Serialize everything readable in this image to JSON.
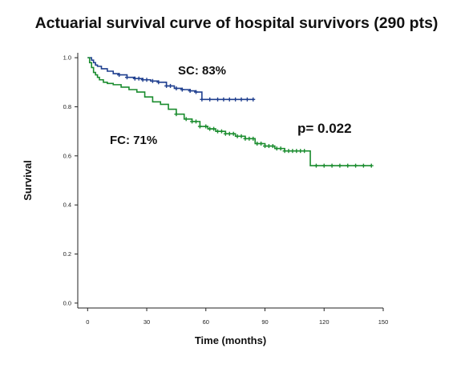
{
  "chart_data": {
    "type": "line",
    "title": "Actuarial survival curve of hospital survivors (290 pts)",
    "xlabel": "Time (months)",
    "ylabel": "Survival",
    "xlim": [
      -5,
      150
    ],
    "ylim": [
      -0.02,
      1.02
    ],
    "xticks": [
      0,
      30,
      60,
      90,
      120,
      150
    ],
    "yticks": [
      0.0,
      0.2,
      0.4,
      0.6,
      0.8,
      1.0
    ],
    "grid": false,
    "annotations": [
      "SC: 83%",
      "FC: 71%",
      "p= 0.022"
    ],
    "series": [
      {
        "color": "#1f3f8f",
        "x": [
          0,
          1,
          2,
          3,
          4,
          5,
          7,
          10,
          13,
          16,
          20,
          24,
          28,
          32,
          36,
          40,
          44,
          48,
          52,
          55,
          58,
          62,
          66,
          70,
          75,
          80,
          84
        ],
        "y": [
          1.0,
          1.0,
          0.99,
          0.98,
          0.97,
          0.965,
          0.955,
          0.945,
          0.935,
          0.93,
          0.92,
          0.915,
          0.91,
          0.905,
          0.9,
          0.885,
          0.875,
          0.87,
          0.865,
          0.86,
          0.83,
          0.83,
          0.83,
          0.83,
          0.83,
          0.83,
          0.83
        ],
        "censor_x": [
          16,
          20,
          24,
          26,
          28,
          30,
          33,
          36,
          40,
          42,
          45,
          48,
          52,
          55,
          58,
          62,
          66,
          69,
          72,
          75,
          78,
          81,
          84
        ]
      },
      {
        "color": "#1a8c2e",
        "x": [
          0,
          1,
          2,
          3,
          4,
          5,
          6,
          8,
          10,
          13,
          17,
          21,
          25,
          29,
          33,
          37,
          41,
          45,
          49,
          53,
          57,
          61,
          65,
          70,
          75,
          80,
          85,
          90,
          95,
          100,
          105,
          110,
          113,
          120,
          130,
          140,
          144
        ],
        "y": [
          1.0,
          0.98,
          0.96,
          0.94,
          0.93,
          0.92,
          0.91,
          0.9,
          0.895,
          0.89,
          0.88,
          0.87,
          0.86,
          0.84,
          0.82,
          0.81,
          0.79,
          0.77,
          0.75,
          0.74,
          0.72,
          0.71,
          0.7,
          0.69,
          0.68,
          0.67,
          0.65,
          0.64,
          0.63,
          0.62,
          0.62,
          0.62,
          0.56,
          0.56,
          0.56,
          0.56,
          0.56
        ],
        "censor_x": [
          45,
          50,
          53,
          55,
          57,
          60,
          62,
          64,
          66,
          68,
          70,
          72,
          74,
          76,
          78,
          80,
          82,
          84,
          86,
          88,
          90,
          92,
          94,
          96,
          98,
          100,
          102,
          104,
          106,
          108,
          110,
          116,
          120,
          124,
          128,
          132,
          136,
          140,
          144
        ]
      }
    ]
  }
}
